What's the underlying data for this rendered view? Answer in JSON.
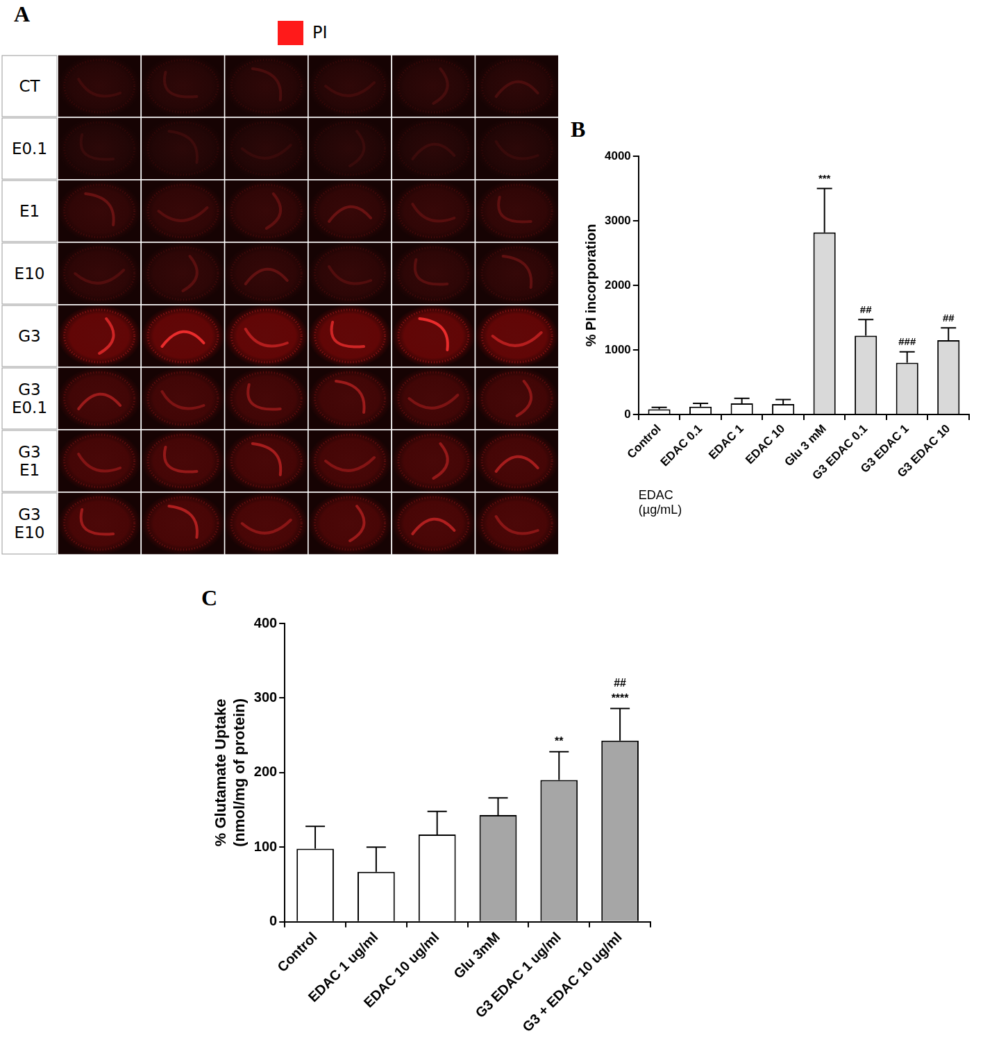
{
  "panel_a": {
    "panel_label": "A",
    "legend_label": "PI",
    "color": "#ff1a1a",
    "rows": [
      [
        "CT"
      ],
      [
        "E0.1"
      ],
      [
        "E1"
      ],
      [
        "E10"
      ],
      [
        "G3"
      ],
      [
        "G3",
        "E0.1"
      ],
      [
        "G3",
        "E1"
      ],
      [
        "G3",
        "E10"
      ]
    ]
  },
  "chart_data": [
    {
      "type": "bar",
      "panel_label": "B",
      "ylabel": "% PI incorporation",
      "xlabel": [
        "EDAC",
        "(µg/mL)"
      ],
      "categories": [
        "Control",
        "EDAC 0.1",
        "EDAC 1",
        "EDAC 10",
        "Glu 3 mM",
        "G3 EDAC 0.1",
        "G3 EDAC 1",
        "G3 EDAC 10"
      ],
      "values": [
        80,
        120,
        170,
        160,
        2820,
        1220,
        800,
        1150
      ],
      "errors": [
        30,
        50,
        80,
        70,
        680,
        250,
        170,
        190
      ],
      "annotations": [
        null,
        null,
        null,
        null,
        [
          "***"
        ],
        [
          "##"
        ],
        [
          "###"
        ],
        [
          "##"
        ]
      ],
      "colors": [
        "#ffffff",
        "#ffffff",
        "#ffffff",
        "#ffffff",
        "#d9d9d9",
        "#d9d9d9",
        "#d9d9d9",
        "#d9d9d9"
      ],
      "ylim": [
        0,
        4000
      ],
      "yticks": [
        0,
        1000,
        2000,
        3000,
        4000
      ],
      "grid": false
    },
    {
      "type": "bar",
      "panel_label": "C",
      "ylabel": [
        "% Glutamate Uptake",
        "(nmol/mg of protein)"
      ],
      "categories": [
        "Control",
        "EDAC 1 ug/ml",
        "EDAC 10 ug/ml",
        "Glu 3mM",
        "G3 EDAC 1 ug/ml",
        "G3 + EDAC 10 ug/ml"
      ],
      "values": [
        98,
        67,
        117,
        143,
        190,
        243
      ],
      "errors": [
        30,
        33,
        31,
        23,
        38,
        43
      ],
      "annotations": [
        null,
        null,
        null,
        null,
        [
          "**"
        ],
        [
          "##",
          "****"
        ]
      ],
      "colors": [
        "#ffffff",
        "#ffffff",
        "#ffffff",
        "#a6a6a6",
        "#a6a6a6",
        "#a6a6a6"
      ],
      "ylim": [
        0,
        400
      ],
      "yticks": [
        0,
        100,
        200,
        300,
        400
      ],
      "grid": false
    }
  ]
}
